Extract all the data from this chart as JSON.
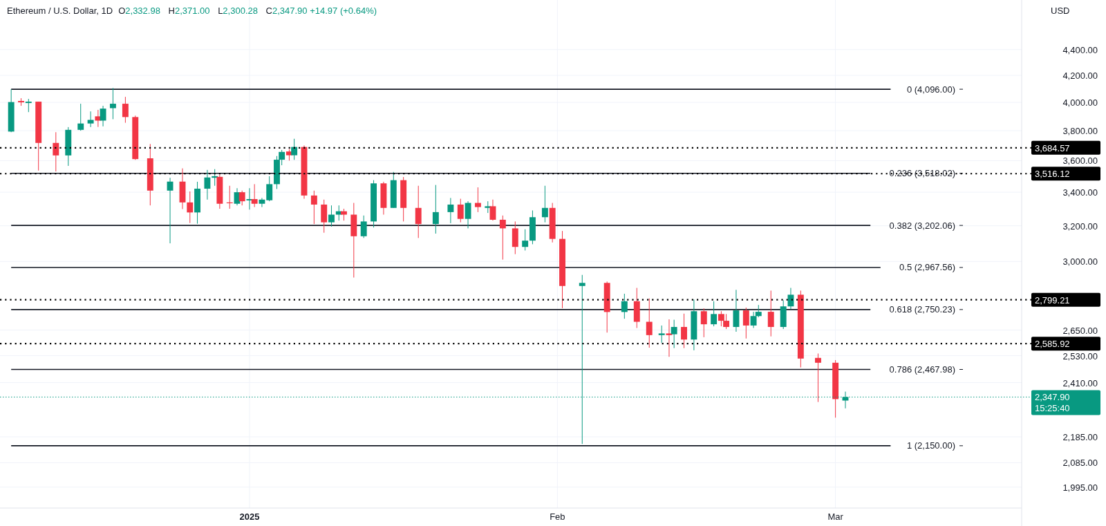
{
  "chart_data": {
    "type": "candlestick",
    "title": "Ethereum / U.S. Dollar, 1D",
    "subtitle": "O2,332.98 H2,371.00 L2,300.28 C2,347.90 +14.97 (+0.64%)",
    "ylabel": "USD",
    "x": [
      "2024-12-08T00:00",
      "2024-12-09T00:00",
      "2024-12-09T18:00",
      "2024-12-10T18:00",
      "2024-12-12T12:00",
      "2024-12-13T18:00",
      "2024-12-15T00:00",
      "2024-12-16T00:00",
      "2024-12-16T18:00",
      "2024-12-17T06:00",
      "2024-12-18T06:00",
      "2024-12-19T12:00",
      "2024-12-20T12:00",
      "2024-12-22T00:00",
      "2024-12-24T00:00",
      "2024-12-25T06:00",
      "2024-12-26T00:00",
      "2024-12-26T18:00",
      "2024-12-27T18:00",
      "2024-12-28T12:00",
      "2024-12-29T00:00",
      "2024-12-30T00:00",
      "2024-12-30T18:00",
      "2024-12-31T06:00",
      "2025-01-01T00:00",
      "2025-01-01T12:00",
      "2025-01-02T06:00",
      "2025-01-03T00:00",
      "2025-01-03T18:00",
      "2025-01-04T06:00",
      "2025-01-05T00:00",
      "2025-01-05T12:00",
      "2025-01-06T12:00",
      "2025-01-07T12:00",
      "2025-01-08T12:00",
      "2025-01-09T06:00",
      "2025-01-10T00:00",
      "2025-01-10T12:00",
      "2025-01-11T12:00",
      "2025-01-12T12:00",
      "2025-01-13T12:00",
      "2025-01-14T12:00",
      "2025-01-15T12:00",
      "2025-01-16T12:00",
      "2025-01-18T00:00",
      "2025-01-19T18:00",
      "2025-01-21T06:00",
      "2025-01-22T06:00",
      "2025-01-23T00:00",
      "2025-01-24T00:00",
      "2025-01-25T00:00",
      "2025-01-25T12:00",
      "2025-01-26T12:00",
      "2025-01-27T18:00",
      "2025-01-28T18:00",
      "2025-01-29T12:00",
      "2025-01-30T18:00",
      "2025-01-31T12:00",
      "2025-02-01T12:00",
      "2025-02-03T12:00",
      "2025-02-06T00:00",
      "2025-02-07T18:00",
      "2025-02-09T00:00",
      "2025-02-10T06:00",
      "2025-02-11T12:00",
      "2025-02-12T06:00",
      "2025-02-12T18:00",
      "2025-02-13T18:00",
      "2025-02-14T18:00",
      "2025-02-15T18:00",
      "2025-02-16T18:00",
      "2025-02-17T12:00",
      "2025-02-18T00:00",
      "2025-02-19T00:00",
      "2025-02-20T00:00",
      "2025-02-20T18:00",
      "2025-02-21T06:00",
      "2025-02-22T12:00",
      "2025-02-23T18:00",
      "2025-02-24T12:00",
      "2025-02-25T12:00",
      "2025-02-27T06:00",
      "2025-03-01T00:00",
      "2025-03-02T00:00"
    ],
    "ohlc": [
      [
        3794,
        4096,
        3790,
        4002
      ],
      [
        4010,
        4030,
        3975,
        4000
      ],
      [
        3995,
        4025,
        3930,
        4005
      ],
      [
        4005,
        4005,
        3536,
        3717
      ],
      [
        3717,
        3790,
        3530,
        3634
      ],
      [
        3634,
        3825,
        3566,
        3806
      ],
      [
        3806,
        3990,
        3800,
        3850
      ],
      [
        3850,
        3935,
        3825,
        3875
      ],
      [
        3900,
        3946,
        3826,
        3870
      ],
      [
        3870,
        3975,
        3830,
        3955
      ],
      [
        3958,
        4105,
        3880,
        3990
      ],
      [
        3990,
        4040,
        3855,
        3895
      ],
      [
        3895,
        3905,
        3605,
        3610
      ],
      [
        3615,
        3710,
        3320,
        3410
      ],
      [
        3410,
        3490,
        3100,
        3466
      ],
      [
        3466,
        3550,
        3298,
        3338
      ],
      [
        3338,
        3405,
        3216,
        3278
      ],
      [
        3278,
        3465,
        3212,
        3422
      ],
      [
        3422,
        3540,
        3355,
        3492
      ],
      [
        3490,
        3545,
        3440,
        3500
      ],
      [
        3496,
        3510,
        3300,
        3330
      ],
      [
        3338,
        3440,
        3300,
        3333
      ],
      [
        3330,
        3425,
        3320,
        3400
      ],
      [
        3400,
        3410,
        3320,
        3345
      ],
      [
        3350,
        3425,
        3295,
        3358
      ],
      [
        3358,
        3450,
        3310,
        3330
      ],
      [
        3330,
        3365,
        3310,
        3355
      ],
      [
        3351,
        3500,
        3345,
        3450
      ],
      [
        3450,
        3630,
        3420,
        3606
      ],
      [
        3606,
        3670,
        3570,
        3657
      ],
      [
        3660,
        3675,
        3600,
        3635
      ],
      [
        3635,
        3745,
        3605,
        3690
      ],
      [
        3690,
        3700,
        3360,
        3380
      ],
      [
        3380,
        3410,
        3210,
        3325
      ],
      [
        3325,
        3355,
        3160,
        3220
      ],
      [
        3220,
        3320,
        3195,
        3265
      ],
      [
        3265,
        3320,
        3230,
        3285
      ],
      [
        3285,
        3300,
        3230,
        3265
      ],
      [
        3265,
        3335,
        2914,
        3140
      ],
      [
        3140,
        3260,
        3130,
        3225
      ],
      [
        3225,
        3475,
        3190,
        3455
      ],
      [
        3455,
        3465,
        3265,
        3305
      ],
      [
        3305,
        3527,
        3305,
        3475
      ],
      [
        3475,
        3495,
        3225,
        3305
      ],
      [
        3305,
        3440,
        3130,
        3210
      ],
      [
        3210,
        3445,
        3155,
        3280
      ],
      [
        3280,
        3365,
        3215,
        3325
      ],
      [
        3325,
        3360,
        3220,
        3240
      ],
      [
        3240,
        3345,
        3185,
        3335
      ],
      [
        3335,
        3430,
        3280,
        3310
      ],
      [
        3305,
        3345,
        3275,
        3315
      ],
      [
        3315,
        3355,
        3230,
        3235
      ],
      [
        3235,
        3260,
        3010,
        3185
      ],
      [
        3185,
        3225,
        3040,
        3080
      ],
      [
        3080,
        3180,
        3060,
        3115
      ],
      [
        3115,
        3290,
        3095,
        3250
      ],
      [
        3250,
        3440,
        3220,
        3305
      ],
      [
        3305,
        3335,
        3105,
        3125
      ],
      [
        3125,
        3170,
        2757,
        2870
      ],
      [
        2870,
        2928,
        2157,
        2886
      ],
      [
        2886,
        2893,
        2638,
        2738
      ],
      [
        2738,
        2830,
        2705,
        2792
      ],
      [
        2792,
        2860,
        2660,
        2690
      ],
      [
        2690,
        2806,
        2567,
        2626
      ],
      [
        2626,
        2672,
        2590,
        2634
      ],
      [
        2634,
        2702,
        2525,
        2626
      ],
      [
        2630,
        2700,
        2565,
        2665
      ],
      [
        2665,
        2730,
        2565,
        2605
      ],
      [
        2605,
        2800,
        2555,
        2742
      ],
      [
        2742,
        2756,
        2616,
        2678
      ],
      [
        2678,
        2792,
        2668,
        2728
      ],
      [
        2728,
        2742,
        2668,
        2695
      ],
      [
        2695,
        2728,
        2655,
        2665
      ],
      [
        2665,
        2850,
        2642,
        2746
      ],
      [
        2746,
        2760,
        2610,
        2672
      ],
      [
        2672,
        2739,
        2660,
        2718
      ],
      [
        2718,
        2773,
        2712,
        2739
      ],
      [
        2739,
        2846,
        2620,
        2665
      ],
      [
        2665,
        2797,
        2655,
        2766
      ],
      [
        2766,
        2860,
        2752,
        2825
      ],
      [
        2825,
        2846,
        2477,
        2517
      ],
      [
        2520,
        2540,
        2327,
        2498
      ],
      [
        2498,
        2510,
        2262,
        2339
      ],
      [
        2332.98,
        2371,
        2300.28,
        2347.9
      ]
    ],
    "xlim": [
      "2024-12-06T21:00",
      "2025-03-19T18:00"
    ],
    "xticks": [
      {
        "value": "2025-01-01",
        "label": "2025"
      },
      {
        "value": "2025-02-01",
        "label": "Feb"
      },
      {
        "value": "2025-03-01",
        "label": "Mar"
      }
    ],
    "ylim": [
      1921,
      4813
    ],
    "log": "y",
    "yticks": [
      {
        "value": 1995,
        "label": "1,995.00"
      },
      {
        "value": 2085,
        "label": "2,085.00"
      },
      {
        "value": 2185,
        "label": "2,185.00"
      },
      {
        "value": 2410,
        "label": "2,410.00"
      },
      {
        "value": 2530,
        "label": "2,530.00"
      },
      {
        "value": 2650,
        "label": "2,650.00"
      },
      {
        "value": 3000,
        "label": "3,000.00"
      },
      {
        "value": 3200,
        "label": "3,200.00"
      },
      {
        "value": 3400,
        "label": "3,400.00"
      },
      {
        "value": 3600,
        "label": "3,600.00"
      },
      {
        "value": 3800,
        "label": "3,800.00"
      },
      {
        "value": 4000,
        "label": "4,000.00"
      },
      {
        "value": 4200,
        "label": "4,200.00"
      },
      {
        "value": 4400,
        "label": "4,400.00"
      }
    ],
    "grid": true,
    "ref_lines": [
      {
        "axis": "y",
        "value": 4096,
        "label": "0 (4,096.00)",
        "color": "#131722",
        "line_style": "solid"
      },
      {
        "axis": "y",
        "value": 3518.02,
        "label": "0.236 (3,518.02)",
        "color": "#131722",
        "line_style": "solid"
      },
      {
        "axis": "y",
        "value": 3202.06,
        "label": "0.382 (3,202.06)",
        "color": "#131722",
        "line_style": "solid"
      },
      {
        "axis": "y",
        "value": 2967.56,
        "label": "0.5 (2,967.56)",
        "color": "#131722",
        "line_style": "solid"
      },
      {
        "axis": "y",
        "value": 2750.23,
        "label": "0.618 (2,750.23)",
        "color": "#131722",
        "line_style": "solid"
      },
      {
        "axis": "y",
        "value": 2467.98,
        "label": "0.786 (2,467.98)",
        "color": "#131722",
        "line_style": "solid"
      },
      {
        "axis": "y",
        "value": 2150,
        "label": "1 (2,150.00)",
        "color": "#131722",
        "line_style": "solid"
      },
      {
        "axis": "y",
        "value": 3684.57,
        "label": "3,684.57",
        "color": "#000000",
        "line_style": "dotted"
      },
      {
        "axis": "y",
        "value": 3516.12,
        "label": "3,516.12",
        "color": "#000000",
        "line_style": "dotted"
      },
      {
        "axis": "y",
        "value": 2799.21,
        "label": "2,799.21",
        "color": "#000000",
        "line_style": "dotted"
      },
      {
        "axis": "y",
        "value": 2585.92,
        "label": "2,585.92",
        "color": "#000000",
        "line_style": "dotted"
      },
      {
        "axis": "y",
        "value": 2347.9,
        "label": "2,347.90",
        "color": "#089981",
        "line_style": "dotted"
      }
    ],
    "annotations": [
      "15:25:40"
    ]
  }
}
